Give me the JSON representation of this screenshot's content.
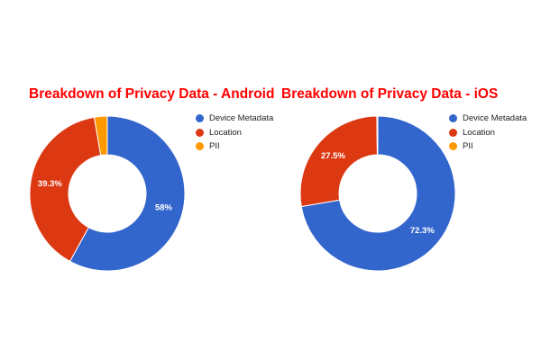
{
  "chart_data": [
    {
      "type": "pie",
      "title": "Breakdown of Privacy Data - Android",
      "donut": true,
      "legend_position": "right",
      "categories": [
        "Device Metadata",
        "Location",
        "PII"
      ],
      "values": [
        58,
        39.3,
        2.7
      ],
      "data_labels": [
        "58%",
        "39.3%",
        ""
      ],
      "colors": [
        "#3366cc",
        "#dc3912",
        "#ff9900"
      ]
    },
    {
      "type": "pie",
      "title": "Breakdown of Privacy Data - iOS",
      "donut": true,
      "legend_position": "right",
      "categories": [
        "Device Metadata",
        "Location",
        "PII"
      ],
      "values": [
        72.3,
        27.5,
        0.2
      ],
      "data_labels": [
        "72.3%",
        "27.5%",
        ""
      ],
      "colors": [
        "#3366cc",
        "#dc3912",
        "#ff9900"
      ]
    }
  ]
}
